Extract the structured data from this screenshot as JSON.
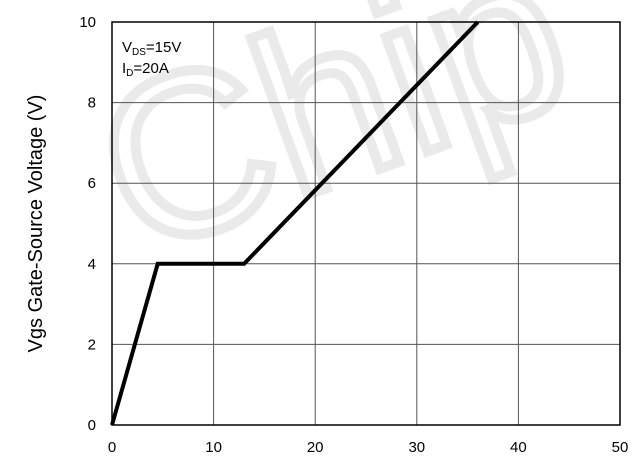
{
  "chart_data": {
    "type": "line",
    "title": "",
    "xlabel": "",
    "ylabel": "Vgs Gate-Source Voltage (V)",
    "xlim": [
      0,
      50
    ],
    "ylim": [
      0,
      10
    ],
    "x_ticks": [
      0,
      10,
      20,
      30,
      40,
      50
    ],
    "y_ticks": [
      0,
      2,
      4,
      6,
      8,
      10
    ],
    "grid": true,
    "legend": "none",
    "annotations": [
      {
        "main": "V",
        "sub": "DS",
        "rest": "=15V"
      },
      {
        "main": "I",
        "sub": "D",
        "rest": "=20A"
      }
    ],
    "series": [
      {
        "x": [
          0,
          4.5,
          13,
          36
        ],
        "y": [
          0,
          4,
          4,
          10
        ],
        "color": "#000000"
      }
    ],
    "watermark": "Chip"
  }
}
